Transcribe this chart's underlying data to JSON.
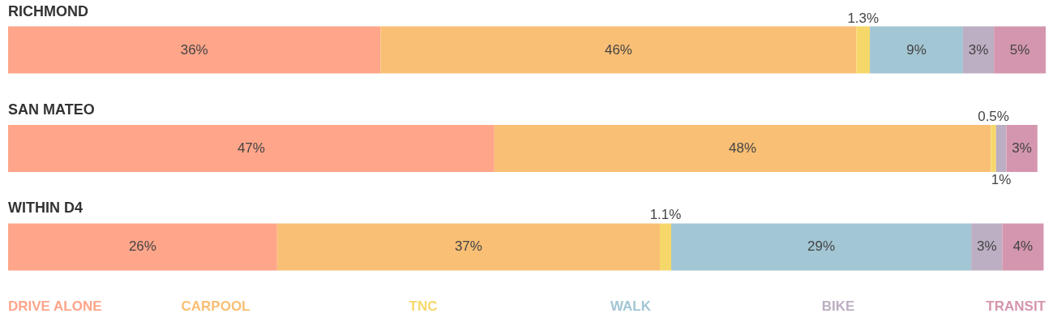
{
  "chart_data": {
    "type": "bar",
    "orientation": "horizontal",
    "stacked": true,
    "categories": [
      "RICHMOND",
      "SAN MATEO",
      "WITHIN D4"
    ],
    "xlim": [
      0,
      100.3
    ],
    "legend": "bottom",
    "series": [
      {
        "name": "DRIVE ALONE",
        "color": "#ffa58a",
        "values": [
          36,
          47,
          26
        ],
        "value_labels": [
          "36%",
          "47%",
          "26%"
        ]
      },
      {
        "name": "CARPOOL",
        "color": "#f9bf75",
        "values": [
          46,
          48,
          37
        ],
        "value_labels": [
          "46%",
          "48%",
          "37%"
        ]
      },
      {
        "name": "TNC",
        "color": "#f6d86a",
        "values": [
          1.3,
          0.5,
          1.1
        ],
        "value_labels": [
          "1.3%",
          "0.5%",
          "1.1%"
        ]
      },
      {
        "name": "WALK",
        "color": "#a3c6d4",
        "values": [
          9,
          null,
          29
        ],
        "value_labels": [
          "9%",
          null,
          "29%"
        ]
      },
      {
        "name": "BIKE",
        "color": "#bcaec3",
        "values": [
          3,
          1,
          3
        ],
        "value_labels": [
          "3%",
          "1%",
          "3%"
        ]
      },
      {
        "name": "TRANSIT",
        "color": "#d496ae",
        "values": [
          5,
          3,
          4
        ],
        "value_labels": [
          "5%",
          "3%",
          "4%"
        ]
      }
    ]
  }
}
